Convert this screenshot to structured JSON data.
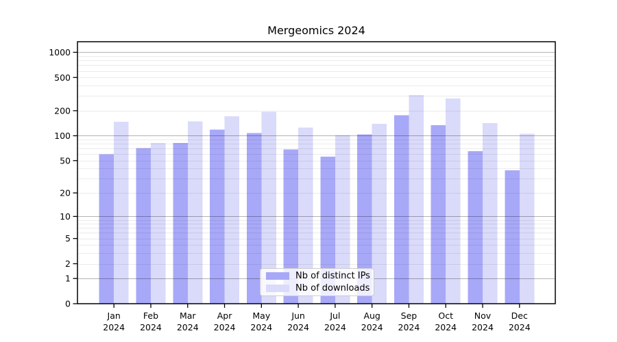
{
  "window": {
    "background": "#ffffff"
  },
  "chart_data": {
    "type": "bar",
    "title": "Mergeomics 2024",
    "categories": [
      "Jan",
      "Feb",
      "Mar",
      "Apr",
      "May",
      "Jun",
      "Jul",
      "Aug",
      "Sep",
      "Oct",
      "Nov",
      "Dec"
    ],
    "category_year": "2024",
    "series": [
      {
        "name": "Nb of distinct IPs",
        "color": "#a8a8f8",
        "values": [
          60,
          71,
          82,
          118,
          108,
          68,
          56,
          104,
          177,
          134,
          65,
          38
        ]
      },
      {
        "name": "Nb of downloads",
        "color": "#dadafa",
        "values": [
          147,
          82,
          149,
          172,
          193,
          125,
          102,
          139,
          308,
          280,
          142,
          106
        ]
      }
    ],
    "xlabel": "",
    "ylabel": "",
    "yscale": "log1p",
    "ylim": [
      0,
      1340
    ],
    "yticks": [
      0,
      1,
      2,
      5,
      10,
      20,
      50,
      100,
      200,
      500,
      1000
    ],
    "grid": {
      "on": true,
      "major": [
        1,
        10,
        100,
        1000
      ],
      "minor": [
        2,
        3,
        4,
        5,
        6,
        7,
        8,
        9,
        20,
        30,
        40,
        50,
        60,
        70,
        80,
        90,
        200,
        300,
        400,
        500,
        600,
        700,
        800,
        900
      ],
      "major_color": "#b3b3b3",
      "minor_color": "#ebebeb"
    },
    "legend": {
      "position": "lower-center"
    },
    "axis_color": "#000000",
    "text_color": "#000000"
  }
}
